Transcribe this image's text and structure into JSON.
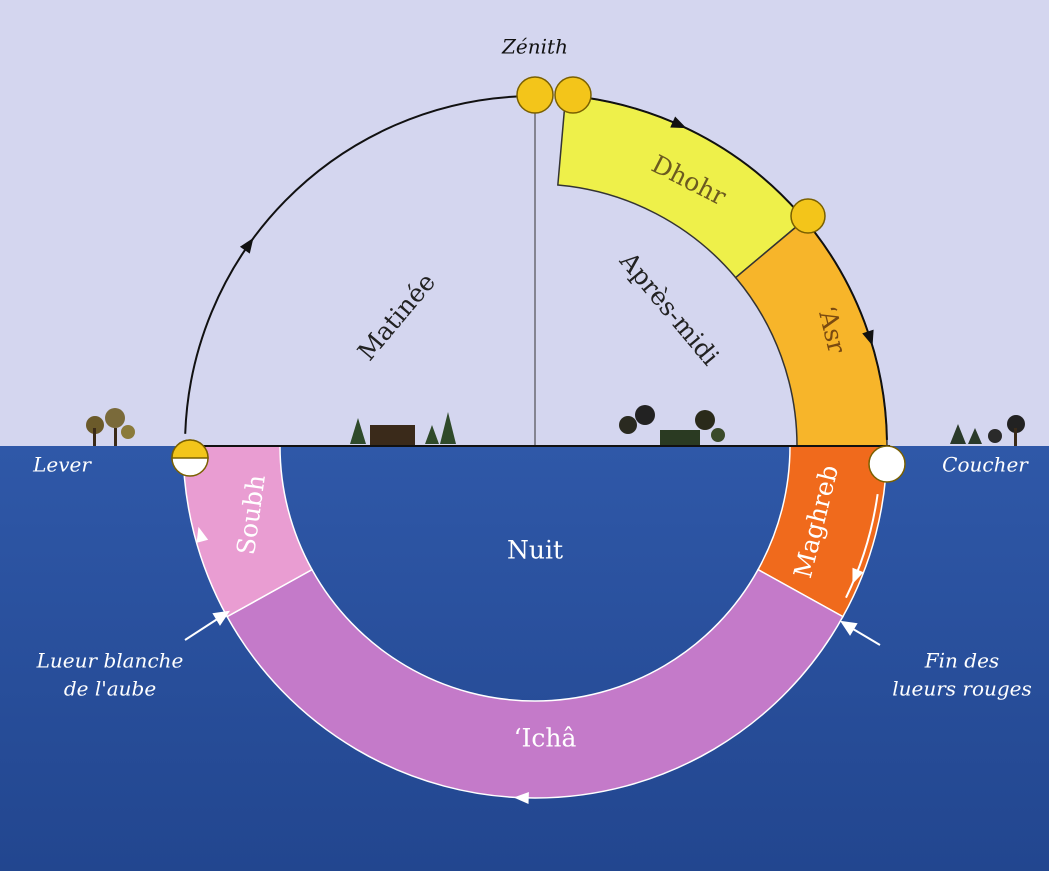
{
  "labels": {
    "zenith": "Zénith",
    "matinee": "Matinée",
    "apres_midi": "Après-midi",
    "lever": "Lever",
    "coucher": "Coucher",
    "nuit": "Nuit",
    "lueur_blanche": [
      "Lueur blanche",
      "de l'aube"
    ],
    "fin_lueurs": [
      "Fin des",
      "lueurs rouges"
    ]
  },
  "prayers": {
    "dhohr": "Dhohr",
    "asr": "‘Asr",
    "maghreb": "Maghreb",
    "icha": "‘Ichâ",
    "soubh": "Soubh"
  }
}
